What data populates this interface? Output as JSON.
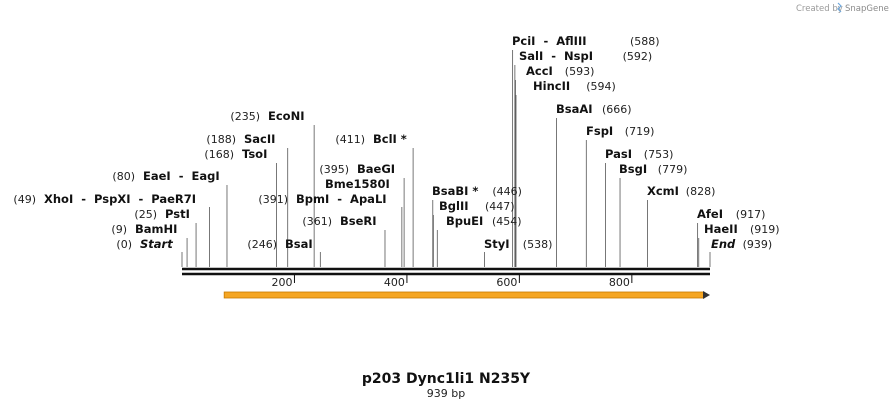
{
  "credit": {
    "text": "Created by",
    "brand": "SnapGene"
  },
  "map": {
    "title": "p203 Dync1li1 N235Y",
    "length_label": "939 bp",
    "length": 939,
    "ticks": [
      {
        "pos": 200,
        "label": "200"
      },
      {
        "pos": 400,
        "label": "400"
      },
      {
        "pos": 600,
        "label": "600"
      },
      {
        "pos": 800,
        "label": "800"
      }
    ],
    "feature": {
      "name": "orf-arrow",
      "start": 75,
      "end": 939,
      "color": "#f5a623",
      "direction": "forward"
    }
  },
  "sites": [
    {
      "name": "Start",
      "pos": 0,
      "pos_label": "(0)",
      "italic": true
    },
    {
      "name": "BamHI",
      "pos": 9,
      "pos_label": "(9)"
    },
    {
      "name": "PstI",
      "pos": 25,
      "pos_label": "(25)"
    },
    {
      "name": "XhoI  -  PspXI  -  PaeR7I",
      "pos": 49,
      "pos_label": "(49)"
    },
    {
      "name": "EaeI  -  EagI",
      "pos": 80,
      "pos_label": "(80)"
    },
    {
      "name": "TsoI",
      "pos": 168,
      "pos_label": "(168)"
    },
    {
      "name": "SacII",
      "pos": 188,
      "pos_label": "(188)"
    },
    {
      "name": "EcoNI",
      "pos": 235,
      "pos_label": "(235)"
    },
    {
      "name": "BsaI",
      "pos": 246,
      "pos_label": "(246)"
    },
    {
      "name": "BseRI",
      "pos": 361,
      "pos_label": "(361)"
    },
    {
      "name": "BpmI  -  ApaLI",
      "pos": 391,
      "pos_label": "(391)"
    },
    {
      "name": "Bme1580I",
      "pos": 395,
      "pos_label": ""
    },
    {
      "name": "BaeGI",
      "pos": 395,
      "pos_label": "(395)"
    },
    {
      "name": "BclI *",
      "pos": 411,
      "pos_label": "(411)"
    },
    {
      "name": "BsaBI *",
      "pos": 446,
      "pos_label": "(446)"
    },
    {
      "name": "BglII",
      "pos": 447,
      "pos_label": "(447)"
    },
    {
      "name": "BpuEI",
      "pos": 454,
      "pos_label": "(454)"
    },
    {
      "name": "StyI",
      "pos": 538,
      "pos_label": "(538)"
    },
    {
      "name": "PciI  -  AflIII",
      "pos": 588,
      "pos_label": "(588)"
    },
    {
      "name": "SalI  -  NspI",
      "pos": 592,
      "pos_label": "(592)"
    },
    {
      "name": "AccI",
      "pos": 593,
      "pos_label": "(593)"
    },
    {
      "name": "HincII",
      "pos": 594,
      "pos_label": "(594)"
    },
    {
      "name": "BsaAI",
      "pos": 666,
      "pos_label": "(666)"
    },
    {
      "name": "FspI",
      "pos": 719,
      "pos_label": "(719)"
    },
    {
      "name": "PasI",
      "pos": 753,
      "pos_label": "(753)"
    },
    {
      "name": "BsgI",
      "pos": 779,
      "pos_label": "(779)"
    },
    {
      "name": "XcmI",
      "pos": 828,
      "pos_label": "(828)"
    },
    {
      "name": "AfeI",
      "pos": 917,
      "pos_label": "(917)"
    },
    {
      "name": "HaeII",
      "pos": 919,
      "pos_label": "(919)"
    },
    {
      "name": "End",
      "pos": 939,
      "pos_label": "(939)",
      "italic": true
    }
  ]
}
